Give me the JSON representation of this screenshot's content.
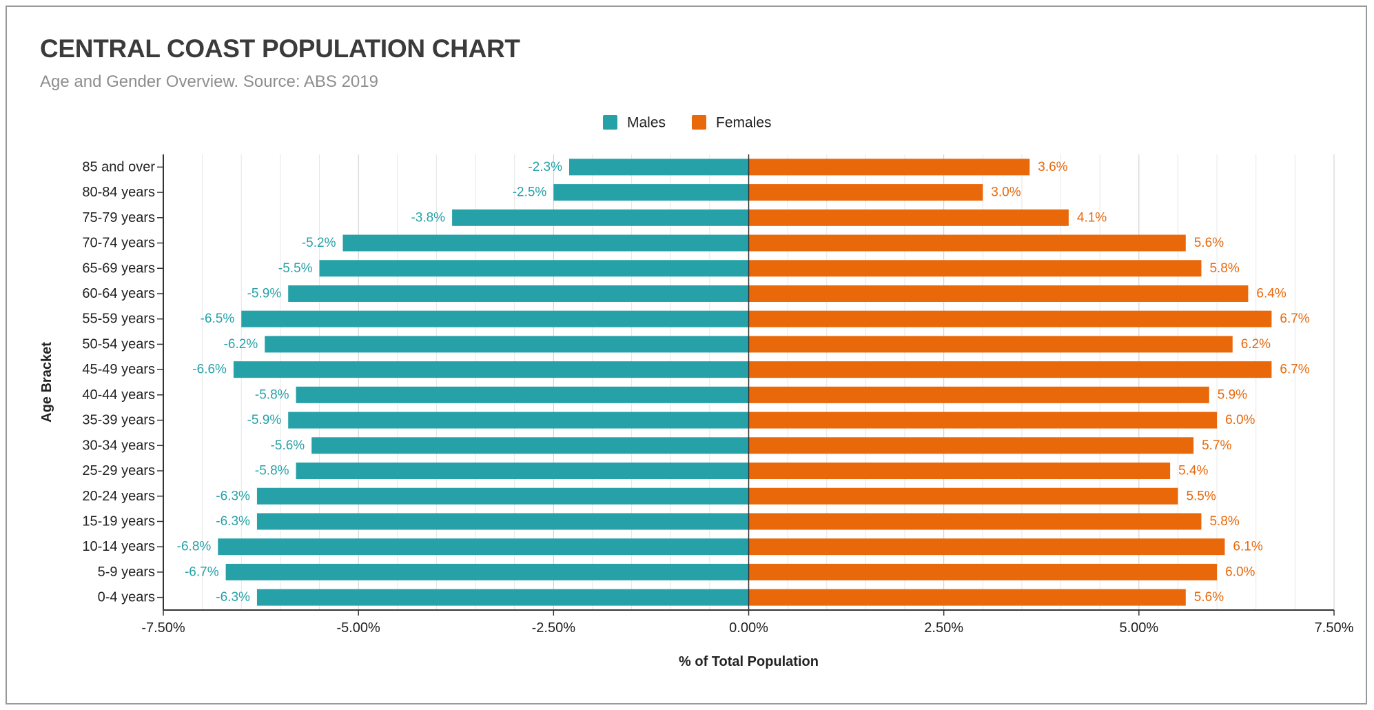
{
  "chart_data": {
    "type": "bar",
    "orientation": "horizontal",
    "title": "CENTRAL COAST POPULATION CHART",
    "subtitle": "Age and Gender Overview. Source: ABS 2019",
    "xlabel": "% of Total Population",
    "ylabel": "Age Bracket",
    "xlim": [
      -7.5,
      7.5
    ],
    "x_ticks": [
      -7.5,
      -5.0,
      -2.5,
      0.0,
      2.5,
      5.0,
      7.5
    ],
    "x_tick_labels": [
      "-7.50%",
      "-5.00%",
      "-2.50%",
      "0.00%",
      "2.50%",
      "5.00%",
      "7.50%"
    ],
    "grid": true,
    "legend": "top-center",
    "categories": [
      "85 and over",
      "80-84 years",
      "75-79 years",
      "70-74 years",
      "65-69 years",
      "60-64 years",
      "55-59 years",
      "50-54 years",
      "45-49 years",
      "40-44 years",
      "35-39 years",
      "30-34 years",
      "25-29 years",
      "20-24 years",
      "15-19 years",
      "10-14 years",
      "5-9 years",
      "0-4 years"
    ],
    "series": [
      {
        "name": "Males",
        "color": "#26a1a8",
        "values": [
          -2.3,
          -2.5,
          -3.8,
          -5.2,
          -5.5,
          -5.9,
          -6.5,
          -6.2,
          -6.6,
          -5.8,
          -5.9,
          -5.6,
          -5.8,
          -6.3,
          -6.3,
          -6.8,
          -6.7,
          -6.3
        ],
        "labels": [
          "-2.3%",
          "-2.5%",
          "-3.8%",
          "-5.2%",
          "-5.5%",
          "-5.9%",
          "-6.5%",
          "-6.2%",
          "-6.6%",
          "-5.8%",
          "-5.9%",
          "-5.6%",
          "-5.8%",
          "-6.3%",
          "-6.3%",
          "-6.8%",
          "-6.7%",
          "-6.3%"
        ]
      },
      {
        "name": "Females",
        "color": "#e8680a",
        "values": [
          3.6,
          3.0,
          4.1,
          5.6,
          5.8,
          6.4,
          6.7,
          6.2,
          6.7,
          5.9,
          6.0,
          5.7,
          5.4,
          5.5,
          5.8,
          6.1,
          6.0,
          5.6
        ],
        "labels": [
          "3.6%",
          "3.0%",
          "4.1%",
          "5.6%",
          "5.8%",
          "6.4%",
          "6.7%",
          "6.2%",
          "6.7%",
          "5.9%",
          "6.0%",
          "5.7%",
          "5.4%",
          "5.5%",
          "5.8%",
          "6.1%",
          "6.0%",
          "5.6%"
        ]
      }
    ]
  }
}
